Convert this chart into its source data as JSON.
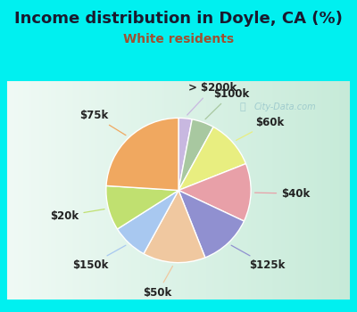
{
  "title": "Income distribution in Doyle, CA (%)",
  "subtitle": "White residents",
  "title_color": "#1a1a2e",
  "subtitle_color": "#a05030",
  "background_outer": "#00f0f0",
  "background_inner_tl": "#f0faf8",
  "background_inner_br": "#c8e8d8",
  "slices": [
    {
      "label": "> $200k",
      "value": 3,
      "color": "#c8b8e0"
    },
    {
      "label": "$100k",
      "value": 5,
      "color": "#a8c8a0"
    },
    {
      "label": "$60k",
      "value": 11,
      "color": "#e8ee80"
    },
    {
      "label": "$40k",
      "value": 13,
      "color": "#e8a0a8"
    },
    {
      "label": "$125k",
      "value": 12,
      "color": "#9090d0"
    },
    {
      "label": "$50k",
      "value": 14,
      "color": "#f0c8a0"
    },
    {
      "label": "$150k",
      "value": 8,
      "color": "#a8c8f0"
    },
    {
      "label": "$20k",
      "value": 10,
      "color": "#c0e070"
    },
    {
      "label": "$75k",
      "value": 24,
      "color": "#f0a860"
    }
  ],
  "label_fontsize": 8.5,
  "title_fontsize": 13,
  "subtitle_fontsize": 10,
  "watermark": "City-Data.com"
}
